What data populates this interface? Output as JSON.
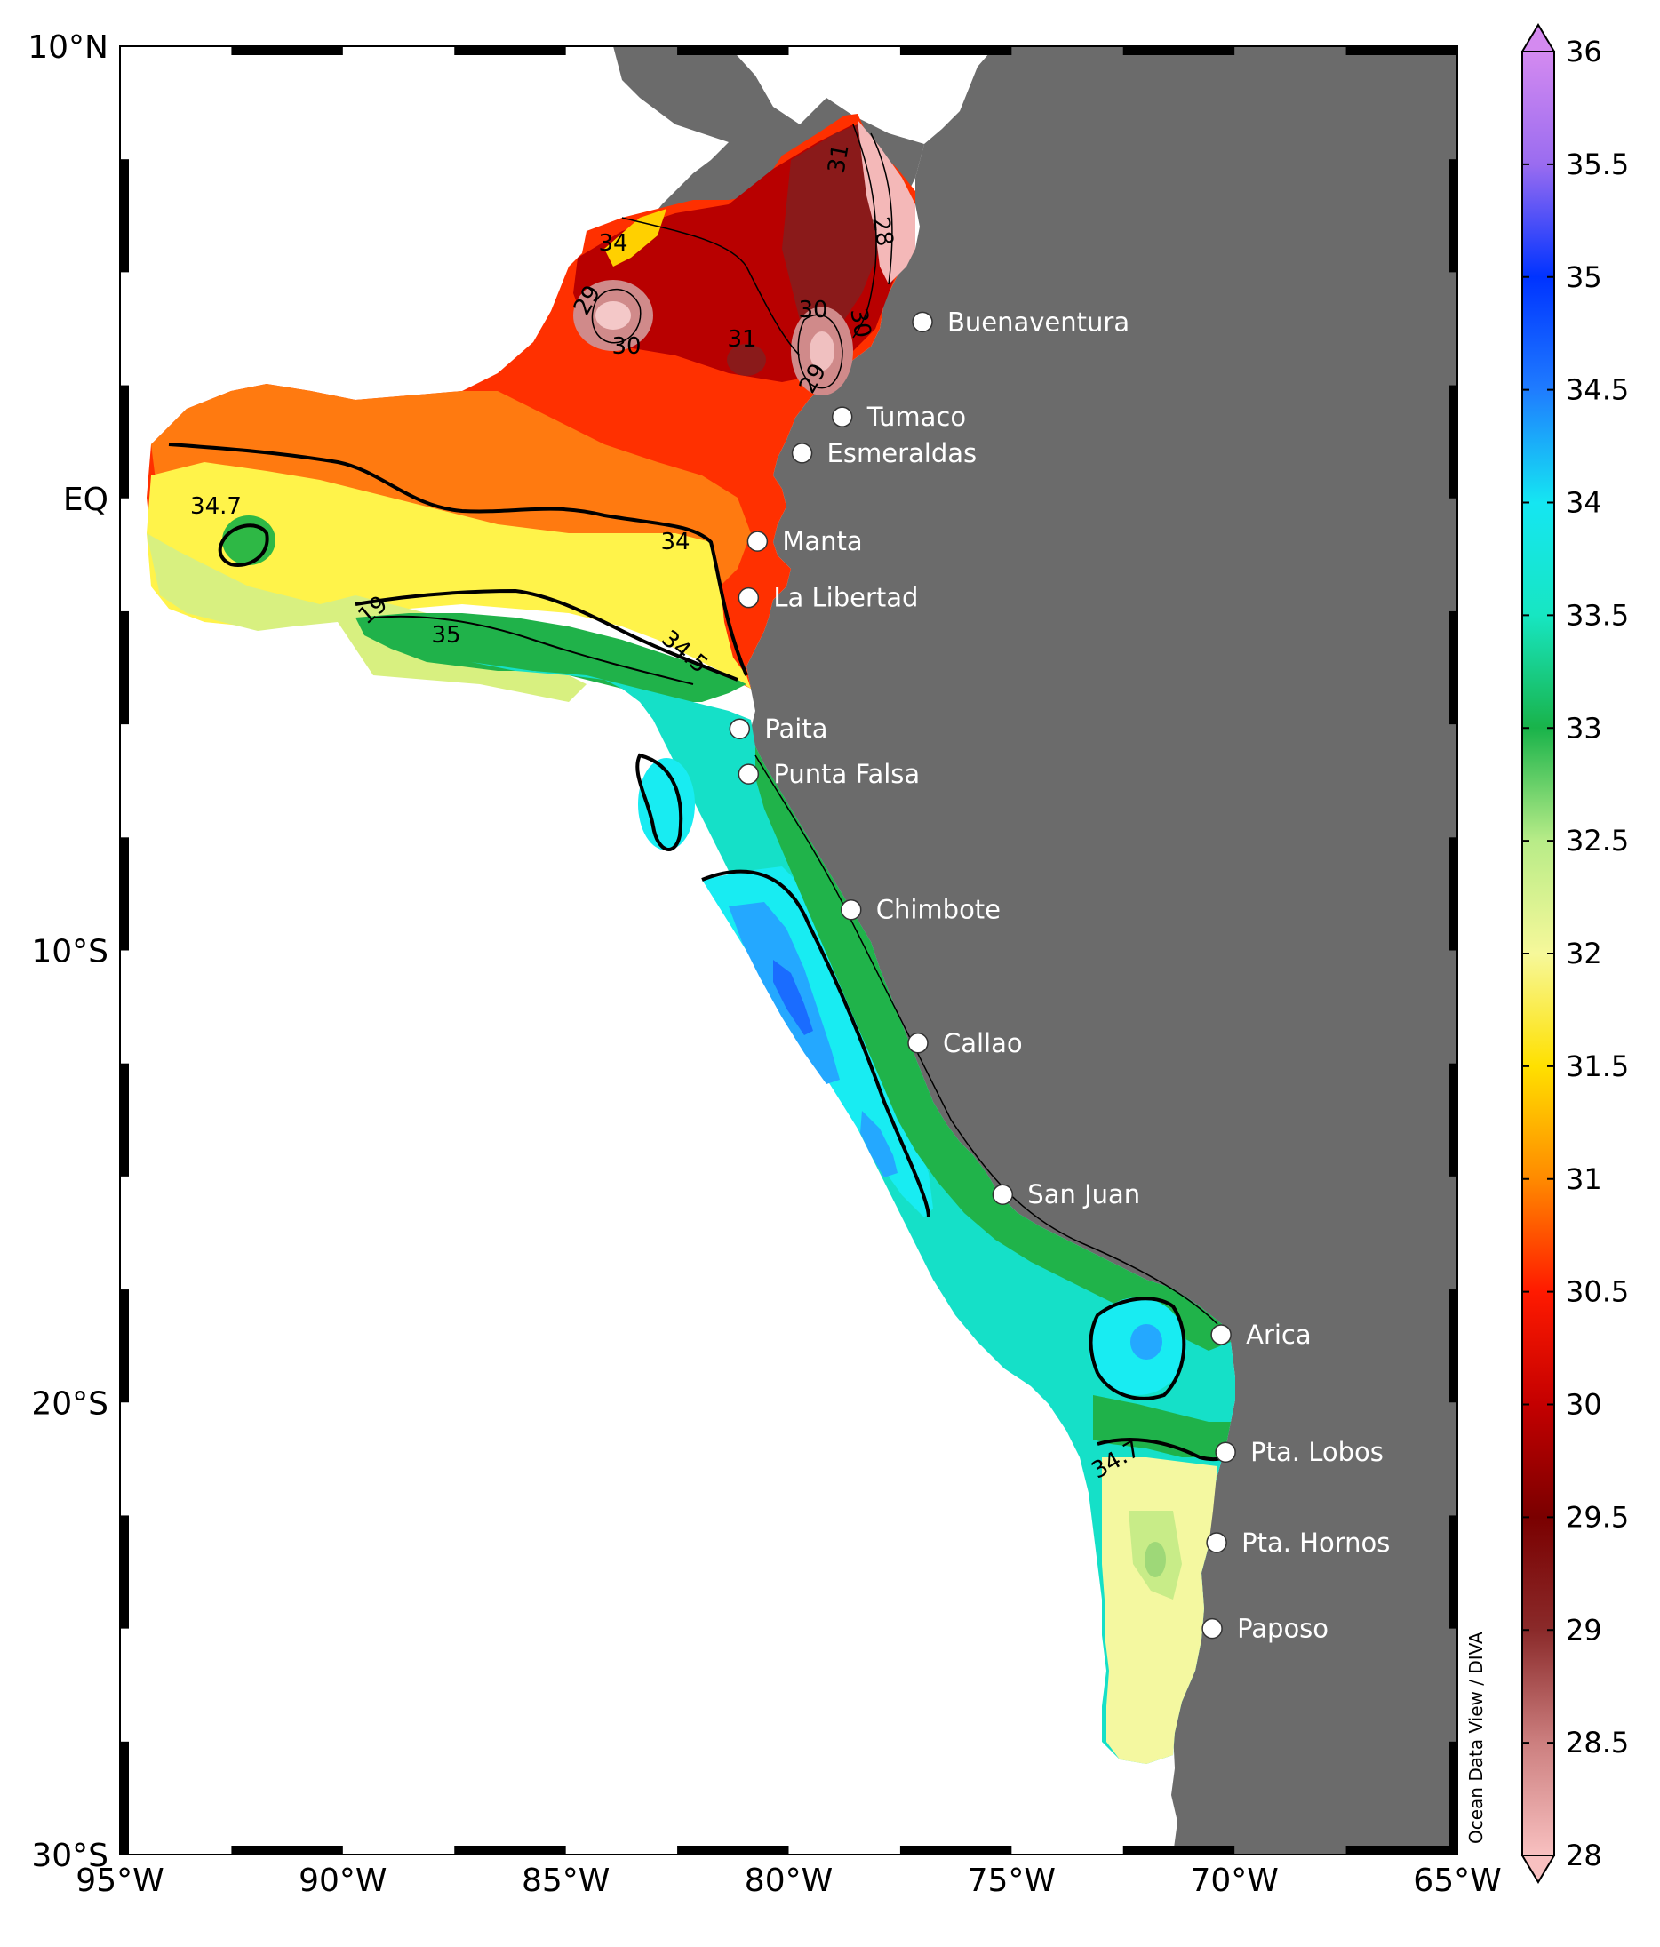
{
  "map": {
    "lat_labels": [
      "10°N",
      "EQ",
      "10°S",
      "20°S",
      "30°S"
    ],
    "lon_labels": [
      "95°W",
      "90°W",
      "85°W",
      "80°W",
      "75°W",
      "70°W",
      "65°W"
    ],
    "credit": "Ocean Data View / DIVA",
    "land_color": "#6b6b6b",
    "cities": [
      {
        "name": "Buenaventura",
        "lon": -77.0,
        "lat": 3.9
      },
      {
        "name": "Tumaco",
        "lon": -78.8,
        "lat": 1.8
      },
      {
        "name": "Esmeraldas",
        "lon": -79.7,
        "lat": 1.0
      },
      {
        "name": "Manta",
        "lon": -80.7,
        "lat": -0.95
      },
      {
        "name": "La Libertad",
        "lon": -80.9,
        "lat": -2.2
      },
      {
        "name": "Paita",
        "lon": -81.1,
        "lat": -5.1
      },
      {
        "name": "Punta Falsa",
        "lon": -80.9,
        "lat": -6.1
      },
      {
        "name": "Chimbote",
        "lon": -78.6,
        "lat": -9.1
      },
      {
        "name": "Callao",
        "lon": -77.1,
        "lat": -12.05
      },
      {
        "name": "San Juan",
        "lon": -75.2,
        "lat": -15.4
      },
      {
        "name": "Arica",
        "lon": -70.3,
        "lat": -18.5
      },
      {
        "name": "Pta. Lobos",
        "lon": -70.2,
        "lat": -21.1
      },
      {
        "name": "Pta. Hornos",
        "lon": -70.4,
        "lat": -23.1
      },
      {
        "name": "Paposo",
        "lon": -70.5,
        "lat": -25.0
      }
    ],
    "contour_labels": [
      "34",
      "29",
      "30",
      "31",
      "30",
      "29",
      "30",
      "31",
      "28",
      "34.7",
      "34",
      "19",
      "35",
      "34.5",
      "34.7"
    ]
  },
  "colorbar": {
    "min": 28,
    "max": 36,
    "ticks": [
      "36",
      "35.5",
      "35",
      "34.5",
      "34",
      "33.5",
      "33",
      "32.5",
      "32",
      "31.5",
      "31",
      "30.5",
      "30",
      "29.5",
      "29",
      "28.5",
      "28"
    ],
    "colors": [
      "#f8c0c0",
      "#cc7f7f",
      "#8a2a2a",
      "#7a0000",
      "#c40000",
      "#ff1a00",
      "#ff8a00",
      "#ffe000",
      "#f6f89a",
      "#b8ec88",
      "#19b34a",
      "#17e6c2",
      "#15e6f2",
      "#1f7cff",
      "#0033ff",
      "#9a6cf0",
      "#d48af0"
    ]
  }
}
